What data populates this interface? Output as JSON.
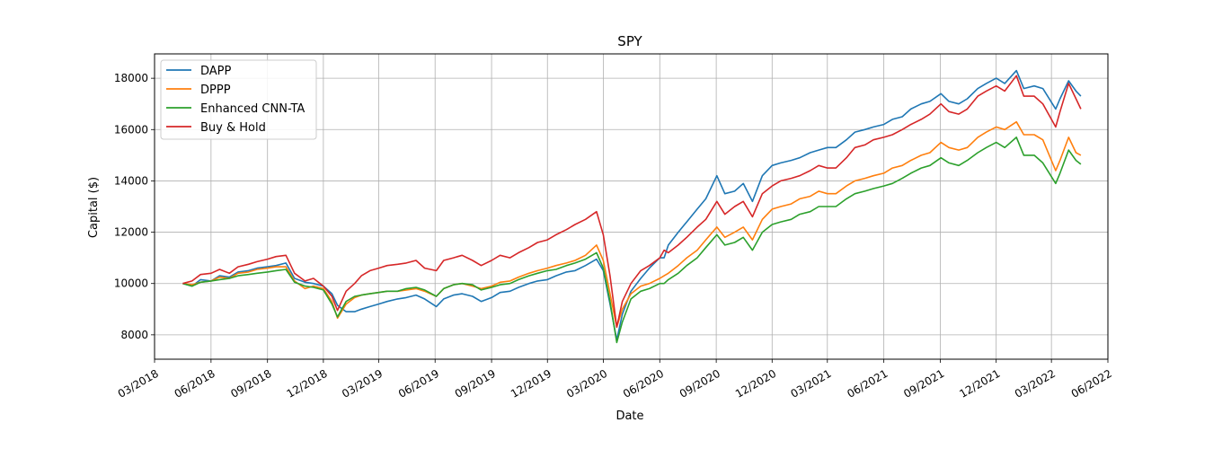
{
  "chart_data": {
    "type": "line",
    "title": "SPY",
    "xlabel": "Date",
    "ylabel": "Capital ($)",
    "x_ticks": [
      "03/2018",
      "06/2018",
      "09/2018",
      "12/2018",
      "03/2019",
      "06/2019",
      "09/2019",
      "12/2019",
      "03/2020",
      "06/2020",
      "09/2020",
      "12/2020",
      "03/2021",
      "06/2021",
      "09/2021",
      "12/2021",
      "03/2022",
      "06/2022"
    ],
    "y_ticks": [
      "8000",
      "10000",
      "12000",
      "14000",
      "16000",
      "18000"
    ],
    "xlim": [
      "2018-03-01",
      "2022-06-01"
    ],
    "ylim": [
      7050,
      18950
    ],
    "grid": true,
    "legend_position": "top-left",
    "x": [
      "2018-04-16",
      "2018-05-01",
      "2018-05-15",
      "2018-06-01",
      "2018-06-15",
      "2018-07-01",
      "2018-07-15",
      "2018-08-01",
      "2018-08-15",
      "2018-09-01",
      "2018-09-15",
      "2018-10-01",
      "2018-10-15",
      "2018-11-01",
      "2018-11-15",
      "2018-12-01",
      "2018-12-15",
      "2018-12-24",
      "2019-01-07",
      "2019-01-21",
      "2019-02-01",
      "2019-02-15",
      "2019-03-01",
      "2019-03-15",
      "2019-04-01",
      "2019-04-15",
      "2019-05-01",
      "2019-05-15",
      "2019-06-03",
      "2019-06-15",
      "2019-07-01",
      "2019-07-15",
      "2019-08-01",
      "2019-08-15",
      "2019-09-01",
      "2019-09-15",
      "2019-10-01",
      "2019-10-15",
      "2019-11-01",
      "2019-11-15",
      "2019-12-01",
      "2019-12-15",
      "2020-01-01",
      "2020-01-15",
      "2020-02-01",
      "2020-02-19",
      "2020-03-01",
      "2020-03-12",
      "2020-03-23",
      "2020-04-01",
      "2020-04-15",
      "2020-05-01",
      "2020-05-15",
      "2020-06-01",
      "2020-06-08",
      "2020-06-15",
      "2020-07-01",
      "2020-07-15",
      "2020-08-01",
      "2020-08-15",
      "2020-09-02",
      "2020-09-15",
      "2020-10-01",
      "2020-10-15",
      "2020-10-30",
      "2020-11-15",
      "2020-12-01",
      "2020-12-15",
      "2021-01-01",
      "2021-01-15",
      "2021-02-01",
      "2021-02-15",
      "2021-03-01",
      "2021-03-15",
      "2021-04-01",
      "2021-04-15",
      "2021-05-01",
      "2021-05-15",
      "2021-06-01",
      "2021-06-15",
      "2021-07-01",
      "2021-07-15",
      "2021-08-01",
      "2021-08-15",
      "2021-09-02",
      "2021-09-15",
      "2021-10-01",
      "2021-10-15",
      "2021-11-01",
      "2021-11-15",
      "2021-12-01",
      "2021-12-15",
      "2022-01-03",
      "2022-01-15",
      "2022-02-01",
      "2022-02-15",
      "2022-03-08",
      "2022-03-15",
      "2022-03-29",
      "2022-04-10",
      "2022-04-18"
    ],
    "series": [
      {
        "name": "DAPP",
        "color": "#1f77b4",
        "values": [
          10000,
          9900,
          10150,
          10100,
          10300,
          10250,
          10450,
          10500,
          10600,
          10650,
          10700,
          10800,
          10200,
          10050,
          10000,
          9900,
          9600,
          9150,
          8900,
          8900,
          9000,
          9100,
          9200,
          9300,
          9400,
          9450,
          9550,
          9400,
          9100,
          9400,
          9550,
          9600,
          9500,
          9300,
          9450,
          9650,
          9700,
          9850,
          10000,
          10100,
          10150,
          10300,
          10450,
          10500,
          10700,
          10950,
          10500,
          9200,
          7800,
          8800,
          9700,
          10200,
          10600,
          11000,
          11000,
          11500,
          12000,
          12400,
          12900,
          13300,
          14200,
          13500,
          13600,
          13900,
          13200,
          14200,
          14600,
          14700,
          14800,
          14900,
          15100,
          15200,
          15300,
          15300,
          15600,
          15900,
          16000,
          16100,
          16200,
          16400,
          16500,
          16800,
          17000,
          17100,
          17400,
          17100,
          17000,
          17200,
          17600,
          17800,
          18000,
          17800,
          18300,
          17600,
          17700,
          17600,
          16800,
          17200,
          17900,
          17500,
          17300
        ]
      },
      {
        "name": "DPPP",
        "color": "#ff7f0e",
        "values": [
          10000,
          9950,
          10050,
          10100,
          10250,
          10200,
          10400,
          10450,
          10550,
          10600,
          10650,
          10650,
          10100,
          9800,
          9900,
          9800,
          9300,
          8650,
          9200,
          9450,
          9550,
          9600,
          9650,
          9700,
          9700,
          9750,
          9800,
          9700,
          9500,
          9800,
          9950,
          10000,
          9900,
          9800,
          9900,
          10050,
          10100,
          10250,
          10400,
          10500,
          10600,
          10700,
          10800,
          10900,
          11100,
          11500,
          10900,
          9600,
          8300,
          9000,
          9600,
          9900,
          10000,
          10200,
          10300,
          10400,
          10700,
          11000,
          11300,
          11700,
          12200,
          11800,
          12000,
          12200,
          11700,
          12500,
          12900,
          13000,
          13100,
          13300,
          13400,
          13600,
          13500,
          13500,
          13800,
          14000,
          14100,
          14200,
          14300,
          14500,
          14600,
          14800,
          15000,
          15100,
          15500,
          15300,
          15200,
          15300,
          15700,
          15900,
          16100,
          16000,
          16300,
          15800,
          15800,
          15600,
          14400,
          14800,
          15700,
          15100,
          15000
        ]
      },
      {
        "name": "Enhanced CNN-TA",
        "color": "#2ca02c",
        "values": [
          10000,
          9900,
          10050,
          10100,
          10150,
          10200,
          10300,
          10350,
          10400,
          10450,
          10500,
          10550,
          10050,
          9900,
          9850,
          9750,
          9200,
          8700,
          9300,
          9500,
          9550,
          9600,
          9650,
          9700,
          9700,
          9800,
          9850,
          9750,
          9500,
          9800,
          9950,
          10000,
          9950,
          9750,
          9850,
          9950,
          10000,
          10150,
          10300,
          10400,
          10500,
          10550,
          10700,
          10800,
          10950,
          11200,
          10600,
          9300,
          7700,
          8500,
          9400,
          9700,
          9800,
          10000,
          10000,
          10150,
          10400,
          10700,
          11000,
          11400,
          11900,
          11500,
          11600,
          11800,
          11300,
          12000,
          12300,
          12400,
          12500,
          12700,
          12800,
          13000,
          13000,
          13000,
          13300,
          13500,
          13600,
          13700,
          13800,
          13900,
          14100,
          14300,
          14500,
          14600,
          14900,
          14700,
          14600,
          14800,
          15100,
          15300,
          15500,
          15300,
          15700,
          15000,
          15000,
          14700,
          13900,
          14300,
          15200,
          14800,
          14650
        ]
      },
      {
        "name": "Buy & Hold",
        "color": "#d62728",
        "values": [
          10000,
          10100,
          10350,
          10400,
          10550,
          10400,
          10650,
          10750,
          10850,
          10950,
          11050,
          11100,
          10400,
          10100,
          10200,
          9900,
          9500,
          8950,
          9700,
          10000,
          10300,
          10500,
          10600,
          10700,
          10750,
          10800,
          10900,
          10600,
          10500,
          10900,
          11000,
          11100,
          10900,
          10700,
          10900,
          11100,
          11000,
          11200,
          11400,
          11600,
          11700,
          11900,
          12100,
          12300,
          12500,
          12800,
          11900,
          10300,
          8300,
          9300,
          10000,
          10500,
          10700,
          11000,
          11300,
          11200,
          11500,
          11800,
          12200,
          12500,
          13200,
          12700,
          13000,
          13200,
          12600,
          13500,
          13800,
          14000,
          14100,
          14200,
          14400,
          14600,
          14500,
          14500,
          14900,
          15300,
          15400,
          15600,
          15700,
          15800,
          16000,
          16200,
          16400,
          16600,
          17000,
          16700,
          16600,
          16800,
          17300,
          17500,
          17700,
          17500,
          18100,
          17300,
          17300,
          17000,
          16100,
          16700,
          17800,
          17200,
          16800
        ]
      }
    ]
  }
}
